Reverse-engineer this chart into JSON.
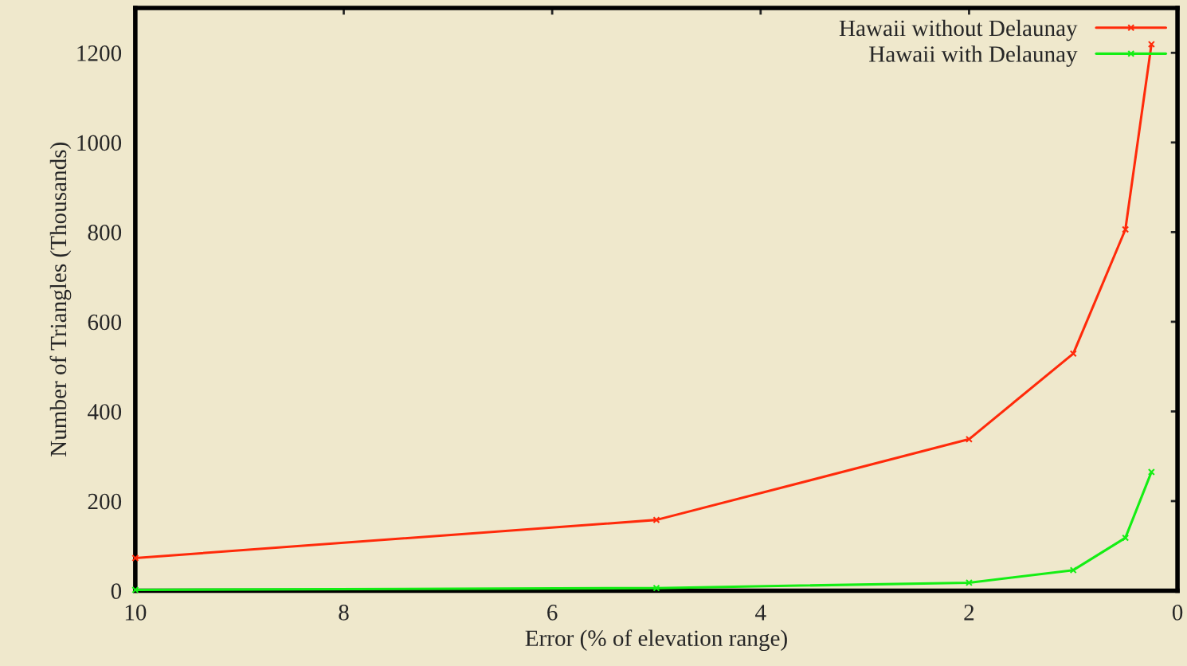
{
  "chart_data": {
    "type": "line",
    "xlabel": "Error (% of elevation range)",
    "ylabel": "Number of Triangles (Thousands)",
    "xlim": [
      10,
      0
    ],
    "xticks": [
      10,
      8,
      6,
      4,
      2,
      0
    ],
    "ylim": [
      0,
      1300
    ],
    "yticks": [
      0,
      200,
      400,
      600,
      800,
      1000,
      1200
    ],
    "legend": "top right",
    "grid": false,
    "marker": "cross",
    "line_style": "solid",
    "series": [
      {
        "name": "Hawaii without Delaunay",
        "color": "#ff2a0a",
        "x": [
          10,
          5,
          2,
          1,
          0.5,
          0.25
        ],
        "values": [
          73,
          158,
          338,
          529,
          806,
          1219
        ]
      },
      {
        "name": "Hawaii with Delaunay",
        "color": "#14ee14",
        "x": [
          10,
          5,
          2,
          1,
          0.5,
          0.25
        ],
        "values": [
          2,
          6,
          18,
          46,
          118,
          265
        ]
      }
    ]
  }
}
